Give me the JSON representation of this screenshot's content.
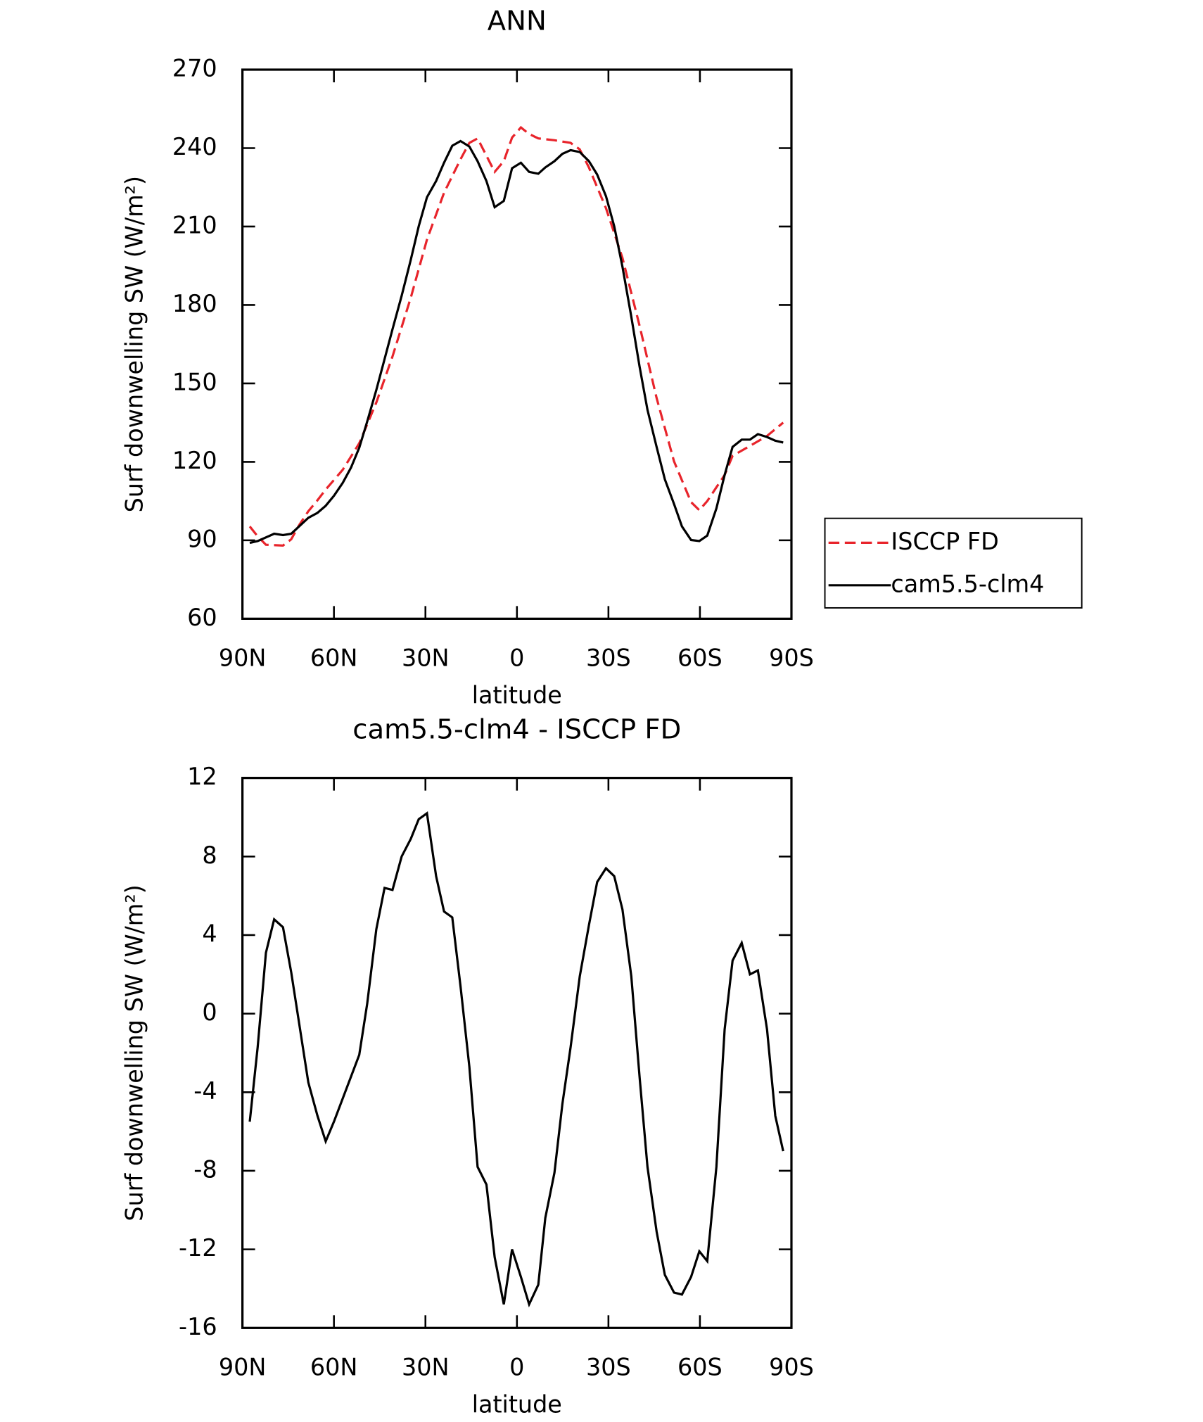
{
  "chart_data": [
    {
      "type": "line",
      "title": "ANN",
      "x_label": "latitude",
      "y_label": "Surf downwelling SW (W/m²)",
      "xlim": [
        90,
        -90
      ],
      "xticks": [
        {
          "value": 90,
          "label": "90N"
        },
        {
          "value": 60,
          "label": "60N"
        },
        {
          "value": 30,
          "label": "30N"
        },
        0,
        {
          "value": -30,
          "label": "30S"
        },
        {
          "value": -60,
          "label": "60S"
        },
        {
          "value": -90,
          "label": "90S"
        }
      ],
      "ylim": [
        60,
        270
      ],
      "yticks": [
        60,
        90,
        120,
        150,
        180,
        210,
        240,
        270
      ],
      "legend": "outside-right",
      "series": [
        {
          "name": "ISCCP FD",
          "color": "#e8242b",
          "dashed": true,
          "x": [
            87.6,
            85,
            82.3,
            76.7,
            74,
            71.3,
            68.4,
            65.4,
            62.7,
            57.1,
            51.7,
            46.1,
            40.8,
            34.8,
            29.5,
            23.9,
            18.5,
            15.6,
            12.9,
            10,
            7.3,
            4.3,
            1.6,
            -1.3,
            -4,
            -7,
            -12.3,
            -17.6,
            -20.6,
            -23.6,
            -29.2,
            -34.6,
            -40.2,
            -45.8,
            -51.5,
            -57.1,
            -59.8,
            -62.4,
            -68.1,
            -70.7,
            -76.4,
            -82,
            -87.3
          ],
          "values": [
            95.3,
            91.5,
            88.3,
            88,
            90.4,
            96,
            101.1,
            105.3,
            109.4,
            117,
            127.1,
            142.7,
            160.3,
            182.8,
            205,
            222.9,
            235.7,
            242,
            243.7,
            237.1,
            230.9,
            235,
            244,
            247.9,
            245.4,
            243.7,
            243,
            242,
            239.5,
            232.6,
            217,
            198,
            172.1,
            144.4,
            120.2,
            104.6,
            101.5,
            105,
            115,
            122.3,
            126.1,
            129.9,
            135
          ]
        },
        {
          "name": "cam5.5-clm4",
          "color": "#000000",
          "dashed": false,
          "x": [
            87.6,
            85,
            79.6,
            76.7,
            74,
            68.4,
            65.4,
            62.7,
            60,
            57.1,
            54.4,
            51.7,
            49.1,
            46.1,
            43.4,
            40.8,
            37.8,
            34.8,
            32.2,
            29.5,
            26.5,
            23.9,
            21.2,
            18.5,
            15.6,
            12.9,
            10,
            7.3,
            4.3,
            1.6,
            -1.3,
            -4,
            -7,
            -9.3,
            -12.3,
            -14.9,
            -17.6,
            -20.6,
            -23.6,
            -26.3,
            -29.2,
            -31.9,
            -34.6,
            -37.5,
            -40.2,
            -42.8,
            -45.8,
            -48.5,
            -51.5,
            -54.1,
            -57.1,
            -59.8,
            -62.4,
            -65.4,
            -68.1,
            -70.7,
            -73.7,
            -76.4,
            -79,
            -82,
            -84.7,
            -87.3
          ],
          "values": [
            89,
            89.7,
            92.5,
            92,
            92.5,
            98.6,
            100.5,
            103.2,
            107,
            112,
            117.8,
            125.4,
            135.4,
            147.5,
            159.3,
            170.7,
            183.5,
            197.3,
            210.1,
            221.2,
            227.4,
            234.4,
            240.9,
            242.7,
            240.6,
            235,
            227.4,
            217.4,
            219.8,
            232.3,
            234.4,
            230.9,
            230.2,
            232.6,
            235,
            237.8,
            239.2,
            238.5,
            235,
            229.9,
            221.6,
            210.1,
            194.6,
            175.5,
            156.5,
            139.9,
            125.7,
            113.3,
            103.9,
            95.3,
            90.1,
            89.7,
            91.8,
            102.2,
            115,
            125.7,
            128.5,
            128.5,
            130.6,
            129.5,
            128.1,
            127.4
          ]
        }
      ]
    },
    {
      "type": "line",
      "title": "cam5.5-clm4 - ISCCP FD",
      "x_label": "latitude",
      "y_label": "Surf downwelling SW (W/m²)",
      "xlim": [
        90,
        -90
      ],
      "xticks": [
        {
          "value": 90,
          "label": "90N"
        },
        {
          "value": 60,
          "label": "60N"
        },
        {
          "value": 30,
          "label": "30N"
        },
        0,
        {
          "value": -30,
          "label": "30S"
        },
        {
          "value": -60,
          "label": "60S"
        },
        {
          "value": -90,
          "label": "90S"
        }
      ],
      "ylim": [
        -16,
        12
      ],
      "yticks": [
        -16,
        -12,
        -8,
        -4,
        0,
        4,
        8,
        12
      ],
      "series": [
        {
          "color": "#000000",
          "dashed": false,
          "x": [
            87.6,
            85,
            82.3,
            79.6,
            76.7,
            74,
            68.4,
            65.4,
            62.7,
            60,
            51.7,
            49.1,
            46.1,
            43.4,
            40.8,
            37.8,
            34.8,
            32.2,
            29.5,
            26.5,
            23.9,
            21.2,
            18.5,
            15.6,
            12.9,
            10,
            7.3,
            4.3,
            1.6,
            -1.3,
            -4,
            -7,
            -9.3,
            -12.3,
            -14.9,
            -17.6,
            -20.6,
            -23.6,
            -26.3,
            -29.2,
            -31.9,
            -34.6,
            -37.5,
            -40.2,
            -42.8,
            -45.8,
            -48.5,
            -51.5,
            -54.1,
            -57.1,
            -59.8,
            -62.4,
            -65.4,
            -68.1,
            -70.7,
            -73.7,
            -76.4,
            -79,
            -82,
            -84.7,
            -87.3
          ],
          "values": [
            -5.5,
            -1.7,
            3.1,
            4.8,
            4.4,
            2.1,
            -3.5,
            -5.2,
            -6.5,
            -5.5,
            -2.1,
            0.5,
            4.3,
            6.4,
            6.3,
            8,
            8.9,
            9.9,
            10.2,
            7,
            5.2,
            4.9,
            1.4,
            -2.7,
            -7.8,
            -8.7,
            -12.4,
            -14.8,
            -12,
            -13.4,
            -14.8,
            -13.8,
            -10.4,
            -8.1,
            -4.6,
            -1.7,
            1.9,
            4.5,
            6.7,
            7.4,
            7,
            5.3,
            1.9,
            -3.2,
            -7.8,
            -11.1,
            -13.3,
            -14.2,
            -14.3,
            -13.4,
            -12.1,
            -12.6,
            -7.8,
            -0.8,
            2.7,
            3.6,
            2,
            2.2,
            -0.8,
            -5.2,
            -7
          ]
        }
      ]
    }
  ]
}
